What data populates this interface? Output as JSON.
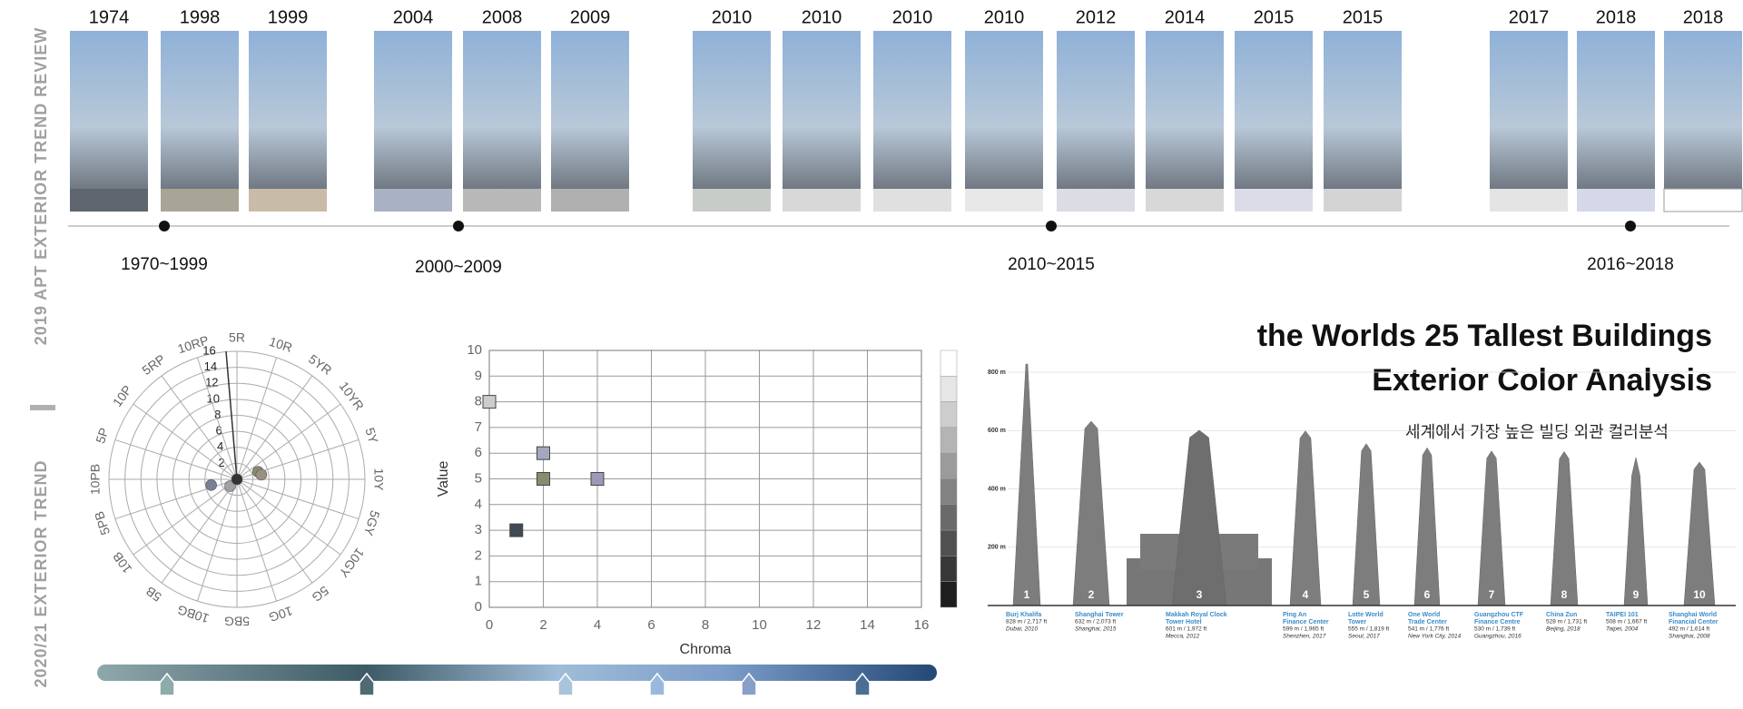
{
  "sidebar": {
    "top": "2019 APT EXTERIOR TREND REVIEW",
    "bottom": "2020/21 EXTERIOR TREND"
  },
  "timeline": {
    "years": [
      "1974",
      "1998",
      "1999",
      "2004",
      "2008",
      "2009",
      "2010",
      "2010",
      "2010",
      "2010",
      "2012",
      "2014",
      "2015",
      "2015",
      "2017",
      "2018",
      "2018"
    ],
    "periods": [
      "1970~1999",
      "2000~2009",
      "2010~2015",
      "2016~2018"
    ]
  },
  "polar": {
    "hues": [
      "5R",
      "10R",
      "5YR",
      "10YR",
      "5Y",
      "10Y",
      "5GY",
      "10GY",
      "5G",
      "10G",
      "5BG",
      "10BG",
      "5B",
      "10B",
      "5PB",
      "10PB",
      "5P",
      "10P",
      "5RP",
      "10RP"
    ],
    "rings": [
      2,
      4,
      6,
      8,
      10,
      12,
      14,
      16
    ],
    "points": [
      {
        "hue": 14.3,
        "chroma": 3.3,
        "color": "#7a7f96"
      },
      {
        "hue": 12.5,
        "chroma": 1.2,
        "color": "#a0a0a8"
      },
      {
        "hue": 0,
        "chroma": 0,
        "color": "#333333"
      },
      {
        "hue": 3.9,
        "chroma": 2.8,
        "color": "#8c8a6e"
      },
      {
        "hue": 4.4,
        "chroma": 3.1,
        "color": "#9a9080"
      }
    ]
  },
  "chart_data": {
    "type": "scatter",
    "x_label": "Chroma",
    "y_label": "Value",
    "xlim": [
      0,
      16
    ],
    "xticks": [
      0,
      2,
      4,
      6,
      8,
      10,
      12,
      14,
      16
    ],
    "ylim": [
      0,
      10
    ],
    "yticks": [
      0,
      1,
      2,
      3,
      4,
      5,
      6,
      7,
      8,
      9,
      10
    ],
    "grid": true,
    "series": [
      {
        "x": [
          0,
          2,
          2,
          4,
          1
        ],
        "values": [
          8,
          6,
          5,
          5,
          3
        ],
        "colors": [
          "#cccccc",
          "#a3a8c0",
          "#8c8a6e",
          "#9a9ab8",
          "#3f4a55"
        ]
      }
    ]
  },
  "heading": {
    "title_1": "the Worlds 25 Tallest Buildings",
    "title_2": "Exterior Color Analysis",
    "subtitle": "세계에서 가장 높은 빌딩 외관 컬러분석"
  },
  "buildings": {
    "ylim": [
      0,
      800
    ],
    "yticks": [
      {
        "value": 200,
        "label": "200 m"
      },
      {
        "value": 400,
        "label": "400 m"
      },
      {
        "value": 600,
        "label": "600 m"
      },
      {
        "value": 800,
        "label": "800 m"
      }
    ],
    "items": [
      {
        "rank": 1,
        "name": [
          "Burj Khalifa"
        ],
        "height": 828,
        "stats": "828 m / 2,717 ft",
        "place": "Dubai, 2010"
      },
      {
        "rank": 2,
        "name": [
          "Shanghai Tower"
        ],
        "height": 632,
        "stats": "632 m / 2,073 ft",
        "place": "Shanghai, 2015"
      },
      {
        "rank": 3,
        "name": [
          "Makkah Royal Clock",
          "Tower Hotel"
        ],
        "height": 601,
        "stats": "601 m / 1,972 ft",
        "place": "Mecca, 2012"
      },
      {
        "rank": 4,
        "name": [
          "Ping An",
          "Finance Center"
        ],
        "height": 599,
        "stats": "599 m / 1,965 ft",
        "place": "Shenzhen, 2017"
      },
      {
        "rank": 5,
        "name": [
          "Lotte World",
          "Tower"
        ],
        "height": 555,
        "stats": "555 m / 1,819 ft",
        "place": "Seoul, 2017"
      },
      {
        "rank": 6,
        "name": [
          "One World",
          "Trade Center"
        ],
        "height": 541,
        "stats": "541 m / 1,776 ft",
        "place": "New York City, 2014"
      },
      {
        "rank": 7,
        "name": [
          "Guangzhou CTF",
          "Finance Centre"
        ],
        "height": 530,
        "stats": "530 m / 1,739 ft",
        "place": "Guangzhou, 2016"
      },
      {
        "rank": 8,
        "name": [
          "China Zun"
        ],
        "height": 528,
        "stats": "528 m / 1,731 ft",
        "place": "Beijing, 2018"
      },
      {
        "rank": 9,
        "name": [
          "TAIPEI 101"
        ],
        "height": 508,
        "stats": "508 m / 1,667 ft",
        "place": "Taipei, 2004"
      },
      {
        "rank": 10,
        "name": [
          "Shanghai World",
          "Financial Center"
        ],
        "height": 492,
        "stats": "492 m / 1,614 ft",
        "place": "Shanghai, 2008"
      }
    ]
  }
}
